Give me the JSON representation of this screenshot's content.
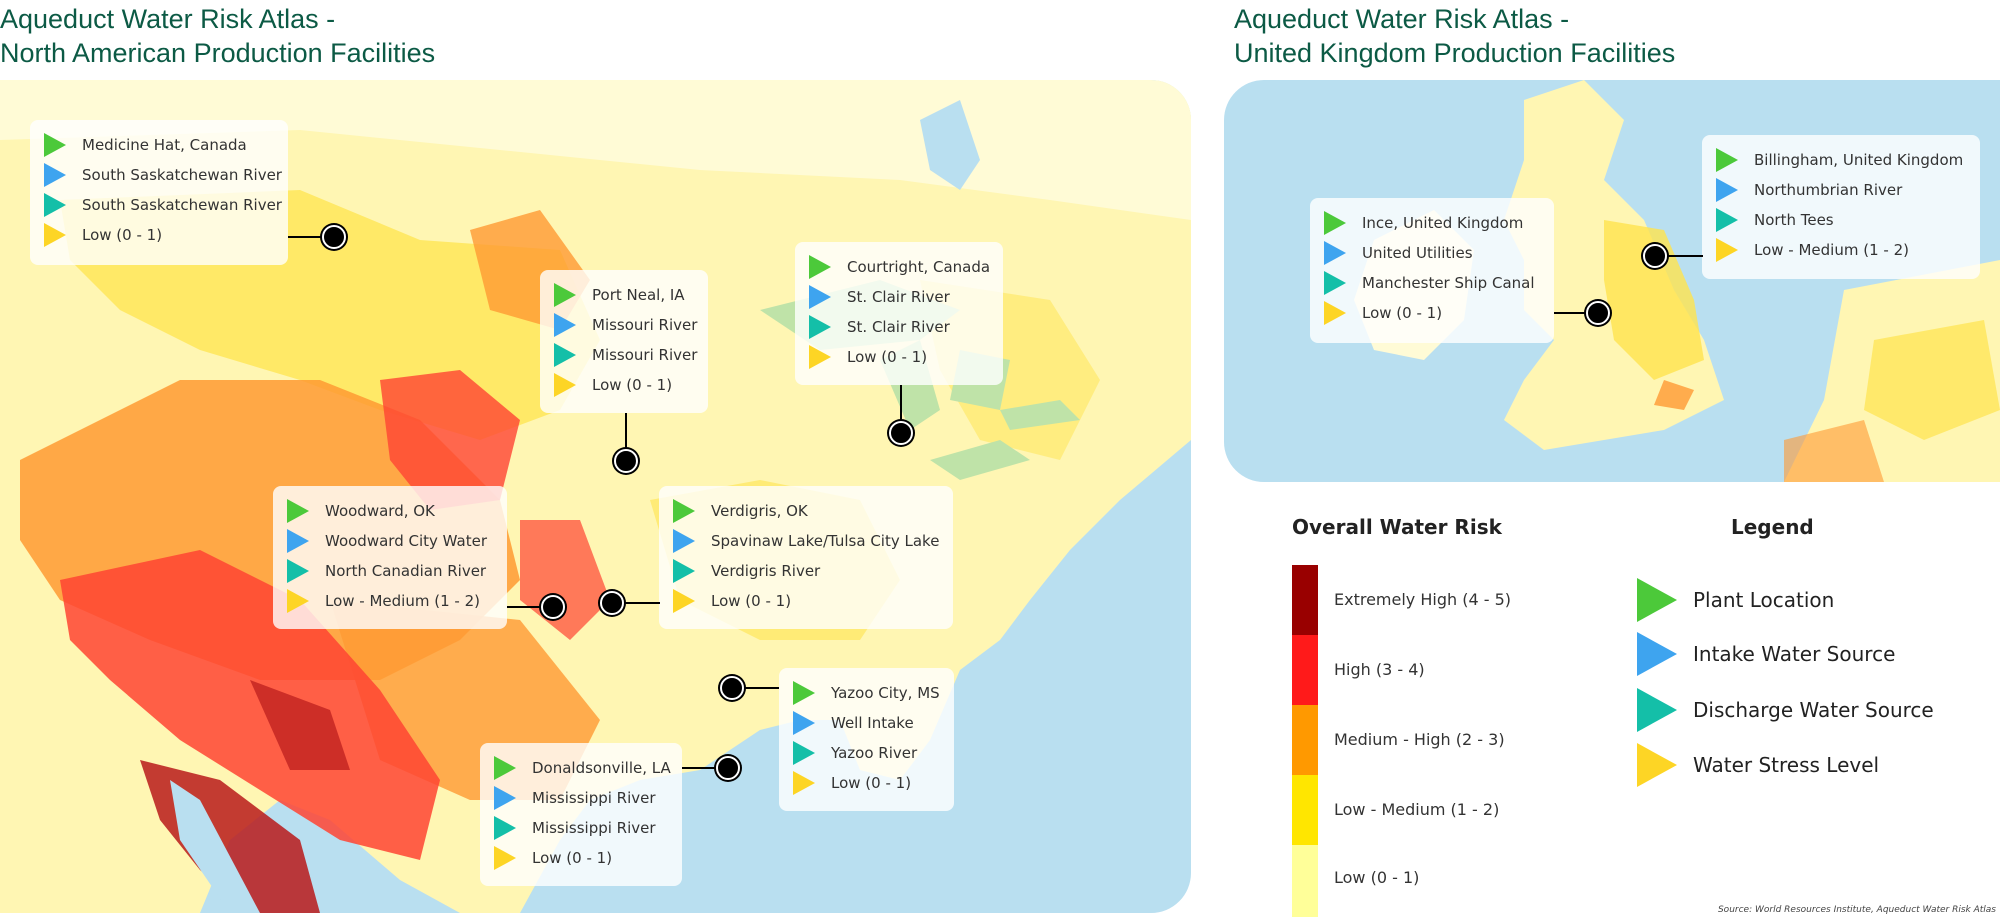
{
  "na_title": {
    "line1": "Aqueduct Water Risk Atlas -",
    "line2": "North American Production Facilities"
  },
  "uk_title": {
    "line1": "Aqueduct Water Risk Atlas -",
    "line2": "United Kingdom Production Facilities"
  },
  "colors": {
    "plant": "#4cc93a",
    "intake": "#3ea4ef",
    "discharge": "#14bfa8",
    "stress": "#fdd525",
    "risk_extremely_high": "#990000",
    "risk_high": "#ff1a1a",
    "risk_medium_high": "#ff9900",
    "risk_low_medium": "#ffe600",
    "risk_low": "#ffff99",
    "water": "#b9dff0"
  },
  "na_facilities": [
    {
      "plant": "Medicine Hat, Canada",
      "intake": "South Saskatchewan River",
      "discharge": "South Saskatchewan River",
      "stress": "Low (0 - 1)"
    },
    {
      "plant": "Port Neal, IA",
      "intake": "Missouri River",
      "discharge": "Missouri River",
      "stress": "Low (0 - 1)"
    },
    {
      "plant": "Courtright, Canada",
      "intake": "St. Clair River",
      "discharge": "St. Clair River",
      "stress": "Low (0 - 1)"
    },
    {
      "plant": "Woodward, OK",
      "intake": "Woodward City Water",
      "discharge": "North Canadian River",
      "stress": "Low - Medium (1 - 2)"
    },
    {
      "plant": "Verdigris, OK",
      "intake": "Spavinaw Lake/Tulsa City Lake",
      "discharge": "Verdigris River",
      "stress": "Low (0 - 1)"
    },
    {
      "plant": "Yazoo City, MS",
      "intake": "Well Intake",
      "discharge": "Yazoo River",
      "stress": "Low (0 - 1)"
    },
    {
      "plant": "Donaldsonville, LA",
      "intake": "Mississippi River",
      "discharge": "Mississippi River",
      "stress": "Low (0 - 1)"
    }
  ],
  "uk_facilities": [
    {
      "plant": "Ince, United Kingdom",
      "intake": "United Utilities",
      "discharge": "Manchester Ship Canal",
      "stress": "Low (0 - 1)"
    },
    {
      "plant": "Billingham, United Kingdom",
      "intake": "Northumbrian River",
      "discharge": "North Tees",
      "stress": "Low - Medium (1 - 2)"
    }
  ],
  "risk_scale": {
    "title": "Overall Water Risk",
    "levels": [
      "Extremely High (4 - 5)",
      "High (3 - 4)",
      "Medium - High (2 - 3)",
      "Low - Medium (1 - 2)",
      "Low (0 - 1)"
    ]
  },
  "legend": {
    "title": "Legend",
    "items": [
      "Plant Location",
      "Intake Water Source",
      "Discharge Water Source",
      "Water Stress Level"
    ]
  },
  "source": "Source: World Resources Institute, Aqueduct Water Risk Atlas"
}
